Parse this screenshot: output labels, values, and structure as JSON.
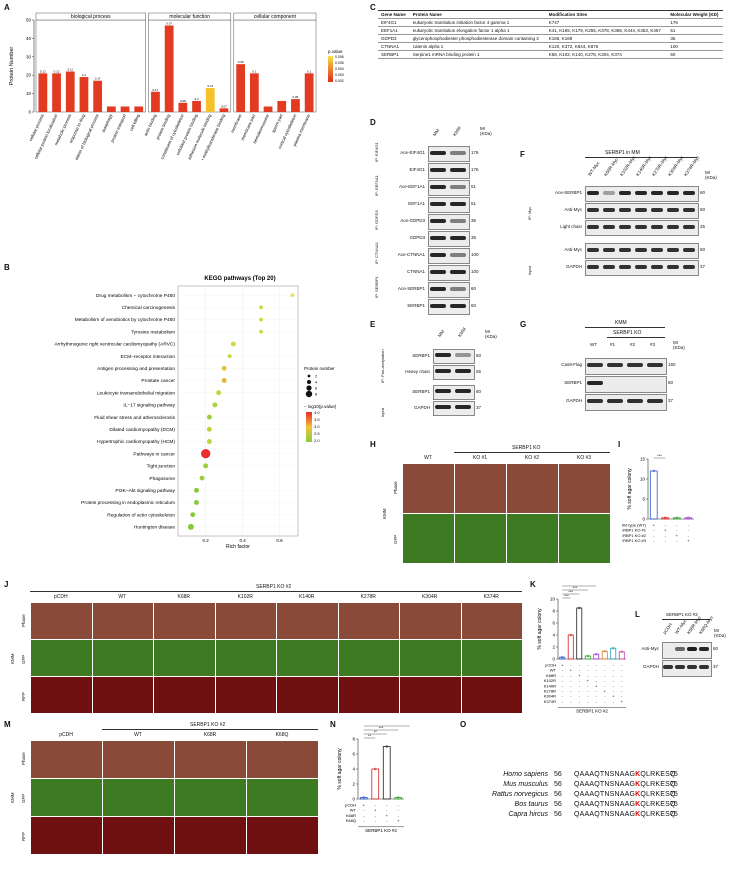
{
  "panels": {
    "A": "A",
    "B": "B",
    "C": "C",
    "D": "D",
    "E": "E",
    "F": "F",
    "G": "G",
    "H": "H",
    "I": "I",
    "J": "J",
    "K": "K",
    "L": "L",
    "M": "M",
    "N": "N",
    "O": "O"
  },
  "chart_data": [
    {
      "id": "A",
      "type": "bar",
      "ylabel": "Protein Number",
      "ylim": [
        0,
        50
      ],
      "yticks": [
        "0",
        "10",
        "20",
        "30",
        "40",
        "50"
      ],
      "groups": [
        {
          "name": "biological process",
          "categories": [
            "cellular process",
            "cellular protein localization",
            "metabolic process",
            "response to drug",
            "regulation of biological process",
            "autophagy",
            "protein transport",
            "cell killing"
          ],
          "values": [
            21,
            21,
            22,
            19,
            17,
            3,
            3,
            3
          ],
          "labels": [
            "0.12",
            "0.12",
            "0.11",
            "0.1",
            "0.17",
            "",
            "",
            ""
          ]
        },
        {
          "name": "molecular function",
          "categories": [
            "actin binding",
            "protein binding",
            "structural constituent of cytoskeleton",
            "unfolded protein binding",
            "cell adhesion molecule binding",
            "histone methyltransferase binding"
          ],
          "values": [
            11,
            47,
            5,
            6,
            13,
            2
          ],
          "labels": [
            "0.17",
            "0.07",
            "0.08",
            "0.2",
            "0.11",
            "0.07"
          ]
        },
        {
          "name": "cellular component",
          "categories": [
            "membrane",
            "membrane part",
            "hemidesmosome",
            "sperm part",
            "cortical cytoskeleton",
            "plasma membrane"
          ],
          "values": [
            26,
            21,
            3,
            6,
            7,
            21
          ],
          "labels": [
            "0.08",
            "0.1",
            "",
            "",
            "0.05",
            "0.1"
          ]
        }
      ],
      "legend": {
        "title": "p.value",
        "ticks": [
          "0.006",
          "0.005",
          "0.004",
          "0.003",
          "0.002"
        ]
      },
      "colors": {
        "bar": "#e23b22",
        "high": "#f6c12b"
      }
    },
    {
      "id": "B",
      "type": "scatter",
      "title": "KEGG pathways (Top 20)",
      "xlabel": "Rich factor",
      "xlim": [
        0.05,
        0.7
      ],
      "xticks": [
        "0.2",
        "0.4",
        "0.6"
      ],
      "categories": [
        "Drug metabolism − cytochrome P450",
        "Chemical carcinogenesis",
        "Metabolism of xenobiotics by cytochrome P450",
        "Tyrosine metabolism",
        "Arrhythmogenic right ventricular cardiomyopathy (ARVC)",
        "ECM−receptor interaction",
        "Antigen processing and presentation",
        "Prostate cancer",
        "Leukocyte transendothelial migration",
        "IL−17 signaling pathway",
        "Fluid shear stress and atherosclerosis",
        "Dilated cardiomyopathy (DCM)",
        "Hypertrophic cardiomyopathy (HCM)",
        "Pathways in cancer",
        "Tight junction",
        "Phagosome",
        "PI3K−Akt signaling pathway",
        "Protein processing in endoplasmic reticulum",
        "Regulation of actin cytoskeleton",
        "Huntington disease"
      ],
      "x": [
        0.67,
        0.5,
        0.5,
        0.5,
        0.35,
        0.33,
        0.3,
        0.3,
        0.27,
        0.25,
        0.22,
        0.22,
        0.22,
        0.2,
        0.2,
        0.18,
        0.15,
        0.15,
        0.13,
        0.12
      ],
      "size": [
        2,
        2,
        2,
        2,
        3,
        2,
        3,
        3,
        3,
        3,
        3,
        3,
        3,
        7,
        3,
        3,
        3,
        3,
        3,
        4
      ],
      "color": [
        "#e8e05a",
        "#c3de3c",
        "#c3de3c",
        "#c3de3c",
        "#d6d640",
        "#b7dc3c",
        "#e0c43c",
        "#e7b33a",
        "#c7d43c",
        "#a8d43c",
        "#9ecf3c",
        "#c3d03c",
        "#c3d03c",
        "#ea2e2e",
        "#9ecc3c",
        "#9ecc3c",
        "#88c93c",
        "#88c93c",
        "#88c93c",
        "#88c93c"
      ],
      "legend_size_title": "Protein number",
      "legend_size_ticks": [
        "2",
        "4",
        "6",
        "8"
      ],
      "legend_color_title": "− log10(p.value)",
      "legend_color_ticks": [
        "4.0",
        "3.5",
        "3.0",
        "2.5",
        "2.0"
      ]
    },
    {
      "id": "I",
      "type": "bar",
      "ylabel": "% soft agar colony",
      "ylim": [
        0,
        15
      ],
      "yticks": [
        "0",
        "5",
        "10",
        "15"
      ],
      "categories": [
        "Wild type (WT)",
        "SERBP1 KO #1",
        "SERBP1 KO #2",
        "SERBP1 KO #3"
      ],
      "values": [
        12,
        0.3,
        0.3,
        0.3
      ],
      "sig": "***"
    },
    {
      "id": "K",
      "type": "bar",
      "ylabel": "% soft agar colony",
      "ylim": [
        0,
        10
      ],
      "yticks": [
        "0",
        "2",
        "4",
        "6",
        "8",
        "10"
      ],
      "categories": [
        "pCDH",
        "WT",
        "K68R",
        "K102R",
        "K140R",
        "K278R",
        "K304R",
        "K374R"
      ],
      "values": [
        0.3,
        4,
        8.5,
        0.5,
        0.8,
        1.3,
        1.8,
        1.2
      ],
      "footer": "SERBP1 KO #2",
      "sig": [
        "***",
        "***",
        "***",
        "**"
      ]
    },
    {
      "id": "N",
      "type": "bar",
      "ylabel": "% soft agar colony",
      "ylim": [
        0,
        8
      ],
      "yticks": [
        "0",
        "2",
        "4",
        "6",
        "8"
      ],
      "categories": [
        "pCDH",
        "WT",
        "K68R",
        "K68Q"
      ],
      "values": [
        0.2,
        4,
        7,
        0.2
      ],
      "footer": "SERBP1 KO #2",
      "sig": [
        "**",
        "**",
        "***",
        "**"
      ]
    }
  ],
  "table_C": {
    "headers": [
      "Gene Name",
      "Protein Name",
      "Modification Sites",
      "Molecular Weight (KD)"
    ],
    "rows": [
      [
        "EIF4G1",
        "eukaryotic translation initiation factor 4 gamma 1",
        "K747",
        "176"
      ],
      [
        "EEF1A1",
        "eukaryotic translation elongation factor 1 alpha 1",
        "K41, K165, K179, K255, K378, K386, K444, K453, K457",
        "51"
      ],
      [
        "GDPD3",
        "glycerophosphodiester phosphodiesterase domain containing 3",
        "K166, K169",
        "36"
      ],
      [
        "CTNNA1",
        "catenin alpha 1",
        "K120, K372, K844, K876",
        "100"
      ],
      [
        "SERBP1",
        "Serpine1 mRNA binding protein 1",
        "K68, K102, K140, K278, K304, K374",
        "60"
      ]
    ]
  },
  "blot_D": {
    "cols": [
      "MM",
      "KMM"
    ],
    "mr": "Mr (KDa)",
    "rows": [
      {
        "label": "Ace-EIF4G1",
        "mw": "176",
        "ip": "IP: EIF4G1"
      },
      {
        "label": "EIF4G1",
        "mw": "176",
        "ip": ""
      },
      {
        "label": "Ace-EEF1A1",
        "mw": "51",
        "ip": "IP: EEF1A1"
      },
      {
        "label": "EEF1A1",
        "mw": "51",
        "ip": ""
      },
      {
        "label": "Ace-GDPD3",
        "mw": "36",
        "ip": "IP: GDPD3"
      },
      {
        "label": "GDPD3",
        "mw": "36",
        "ip": ""
      },
      {
        "label": "Ace-CTNNA1",
        "mw": "100",
        "ip": "IP: CTNNA1"
      },
      {
        "label": "CTNNA1",
        "mw": "100",
        "ip": ""
      },
      {
        "label": "Ace-SERBP1",
        "mw": "60",
        "ip": "IP: SERBP1"
      },
      {
        "label": "SERBP1",
        "mw": "60",
        "ip": ""
      }
    ]
  },
  "blot_E": {
    "cols": [
      "MM",
      "KMM"
    ],
    "mr": "Mr (KDa)",
    "ip": "IP: Pan-acetylation",
    "input": "Input",
    "rows": [
      {
        "label": "SERBP1",
        "mw": "60"
      },
      {
        "label": "Heavy chain",
        "mw": "55"
      },
      {
        "label": "SERBP1",
        "mw": "60"
      },
      {
        "label": "GAPDH",
        "mw": "37"
      }
    ]
  },
  "blot_F": {
    "title": "SERBP1 in MM",
    "cols": [
      "WT-Myc",
      "K68R-Myc",
      "K102R-Myc",
      "K140R-Myc",
      "K278R-Myc",
      "K304R-Myc",
      "K374R-Myc"
    ],
    "mr": "Mr (KDa)",
    "ip": "IP: Myc",
    "input": "Input",
    "rows": [
      {
        "label": "Ace-SERBP1",
        "mw": "60"
      },
      {
        "label": "Anti-Myc",
        "mw": "60"
      },
      {
        "label": "Light chain",
        "mw": "25"
      },
      {
        "label": "Anti-Myc",
        "mw": "60"
      },
      {
        "label": "GAPDH",
        "mw": "37"
      }
    ]
  },
  "blot_G": {
    "title": "KMM",
    "subtitle": "SERBP1 KO",
    "cols": [
      "WT",
      "#1",
      "#2",
      "#3"
    ],
    "mr": "Mr (KDa)",
    "rows": [
      {
        "label": "Cas9-Flag",
        "mw": "160"
      },
      {
        "label": "SERBP1",
        "mw": "60"
      },
      {
        "label": "GAPDH",
        "mw": "37"
      }
    ]
  },
  "blot_L": {
    "title": "SERBP1 KO #2",
    "cols": [
      "pCDH",
      "WT-Myc",
      "K68R-Myc",
      "K68Q-Myc"
    ],
    "mr": "Mr (KDa)",
    "rows": [
      {
        "label": "Anti-Myc",
        "mw": "60"
      },
      {
        "label": "GAPDH",
        "mw": "37"
      }
    ]
  },
  "grid_H": {
    "header": "SERBP1 KO",
    "cols": [
      "WT",
      "KO #1",
      "KO #2",
      "KO #3"
    ],
    "rows": [
      "Phase",
      "GFP"
    ],
    "side": "KMM"
  },
  "grid_J": {
    "header": "SERBP1 KO #2",
    "cols": [
      "pCDH",
      "WT",
      "K68R",
      "K102R",
      "K140R",
      "K278R",
      "K304R",
      "K374R"
    ],
    "rows": [
      "Phase",
      "GFP",
      "RFP"
    ],
    "side": "KMM"
  },
  "grid_M": {
    "header": "SERBP1 KO #2",
    "cols": [
      "pCDH",
      "WT",
      "K68R",
      "K68Q"
    ],
    "rows": [
      "Phase",
      "GFP",
      "RFP"
    ],
    "side": "KMM"
  },
  "alignment_O": {
    "rows": [
      {
        "species": "Homo sapiens",
        "start": "56",
        "pre": "QAAAQTNSNAAG",
        "k": "K",
        "post": "QLRKESQ",
        "end": "75"
      },
      {
        "species": "Mus musculus",
        "start": "56",
        "pre": "QAAAQTNSNAAG",
        "k": "K",
        "post": "QLRKESQ",
        "end": "75"
      },
      {
        "species": "Rattus norvegicus",
        "start": "56",
        "pre": "QAAAQTNSNAAG",
        "k": "K",
        "post": "QLRKESQ",
        "end": "75"
      },
      {
        "species": "Bos taurus",
        "start": "56",
        "pre": "QAAAQTNSNAAG",
        "k": "K",
        "post": "QLRKESQ",
        "end": "75"
      },
      {
        "species": "Capra hircus",
        "start": "56",
        "pre": "QAAAQTNSNAAG",
        "k": "K",
        "post": "QLRKESQ",
        "end": "75"
      }
    ]
  },
  "signs": {
    "plus": "+",
    "minus": "-"
  }
}
